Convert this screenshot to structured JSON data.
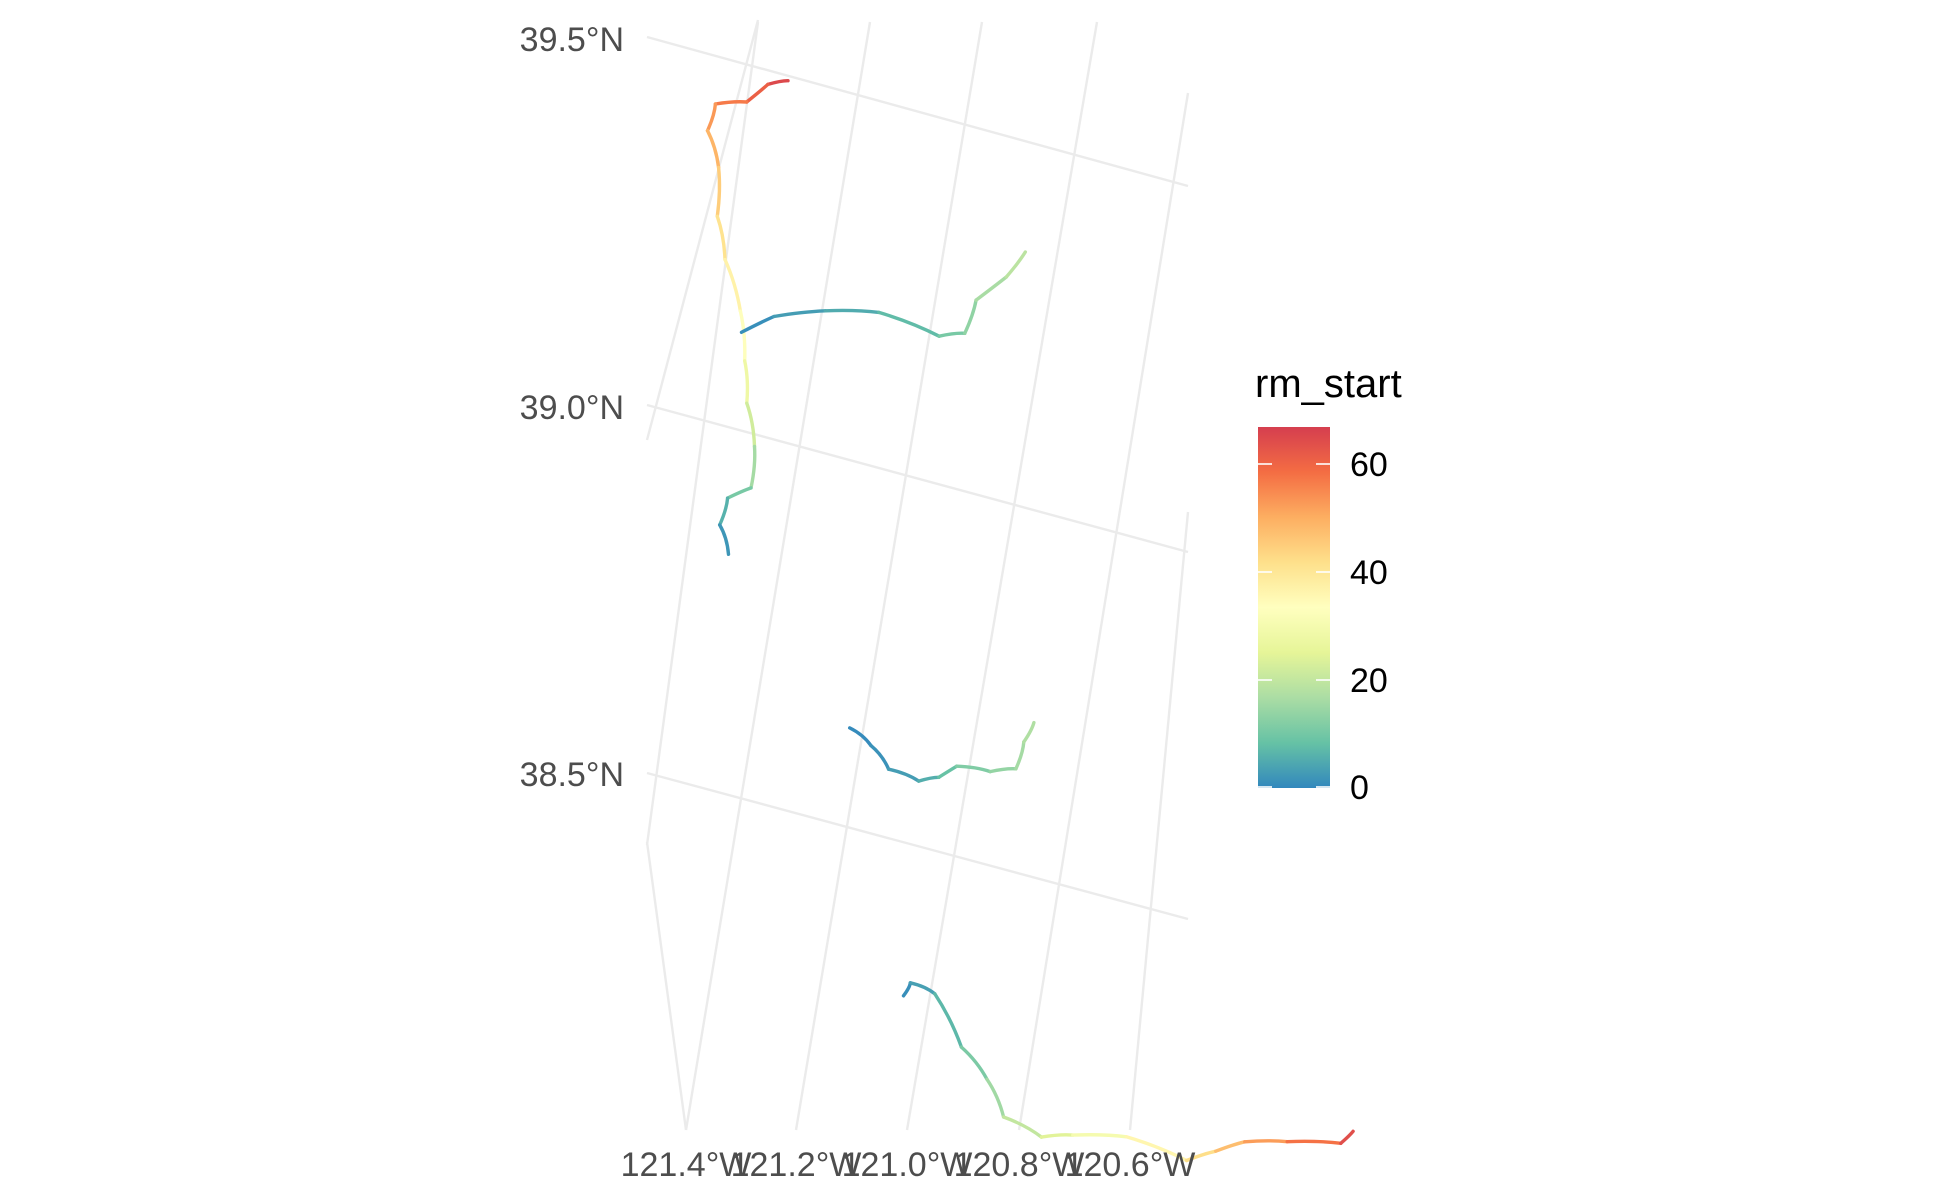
{
  "map": {
    "lat_labels": [
      "39.5°N",
      "39.0°N",
      "38.5°N"
    ],
    "lon_labels": [
      "121.4°W",
      "121.2°W",
      "121.0°W",
      "120.8°W",
      "120.6°W"
    ],
    "grid_color": "#ebebeb",
    "background": "#ffffff"
  },
  "legend": {
    "title": "rm_start",
    "placement": "right",
    "ticks": [
      "60",
      "40",
      "20",
      "0"
    ],
    "range": [
      0,
      67
    ],
    "palette": [
      "#3288bd",
      "#66c2a5",
      "#abdda4",
      "#e6f598",
      "#ffffbf",
      "#fee08b",
      "#fdae61",
      "#f46d43",
      "#d53e4f"
    ]
  },
  "rivers": [
    {
      "id": "upper-river",
      "lonlat": [
        [
          -121.06,
          39.47
        ],
        [
          -121.1,
          39.46
        ],
        [
          -121.15,
          39.43
        ],
        [
          -121.21,
          39.42
        ],
        [
          -121.24,
          39.38
        ],
        [
          -121.24,
          39.33
        ],
        [
          -121.27,
          39.26
        ],
        [
          -121.28,
          39.2
        ],
        [
          -121.28,
          39.13
        ],
        [
          -121.3,
          39.06
        ],
        [
          -121.32,
          39.0
        ],
        [
          -121.33,
          38.94
        ],
        [
          -121.36,
          38.88
        ],
        [
          -121.41,
          38.86
        ],
        [
          -121.44,
          38.82
        ],
        [
          -121.44,
          38.78
        ]
      ],
      "rm_start": [
        67,
        63,
        59,
        55,
        51,
        47,
        43,
        39,
        35,
        31,
        25,
        19,
        13,
        8,
        4,
        0
      ]
    },
    {
      "id": "middle-tributary",
      "lonlat": [
        [
          -121.29,
          39.1
        ],
        [
          -121.22,
          39.13
        ],
        [
          -121.12,
          39.15
        ],
        [
          -121.02,
          39.16
        ],
        [
          -120.92,
          39.14
        ],
        [
          -120.87,
          39.15
        ],
        [
          -120.83,
          39.2
        ],
        [
          -120.76,
          39.24
        ],
        [
          -120.71,
          39.28
        ]
      ],
      "rm_start": [
        0,
        2,
        4,
        6,
        9,
        12,
        15,
        18,
        20
      ]
    },
    {
      "id": "south-river",
      "lonlat": [
        [
          -121.31,
          38.56
        ],
        [
          -121.28,
          38.54
        ],
        [
          -121.26,
          38.51
        ],
        [
          -121.21,
          38.5
        ],
        [
          -121.17,
          38.51
        ],
        [
          -121.13,
          38.53
        ],
        [
          -121.07,
          38.53
        ],
        [
          -121.02,
          38.54
        ],
        [
          -120.99,
          38.58
        ],
        [
          -120.96,
          38.61
        ]
      ],
      "rm_start": [
        0,
        1,
        2,
        4,
        7,
        10,
        13,
        15,
        17,
        18
      ]
    },
    {
      "id": "southernmost-river",
      "lonlat": [
        [
          -121.36,
          38.19
        ],
        [
          -121.34,
          38.21
        ],
        [
          -121.3,
          38.2
        ],
        [
          -121.28,
          38.13
        ],
        [
          -121.25,
          38.09
        ],
        [
          -121.24,
          38.04
        ],
        [
          -121.18,
          38.02
        ],
        [
          -121.12,
          38.03
        ],
        [
          -121.02,
          38.04
        ],
        [
          -120.92,
          38.02
        ],
        [
          -120.86,
          38.04
        ],
        [
          -120.8,
          38.06
        ],
        [
          -120.72,
          38.07
        ],
        [
          -120.62,
          38.08
        ],
        [
          -120.59,
          38.1
        ]
      ],
      "rm_start": [
        0,
        2,
        5,
        9,
        13,
        18,
        22,
        27,
        33,
        39,
        45,
        50,
        55,
        61,
        67
      ]
    }
  ]
}
